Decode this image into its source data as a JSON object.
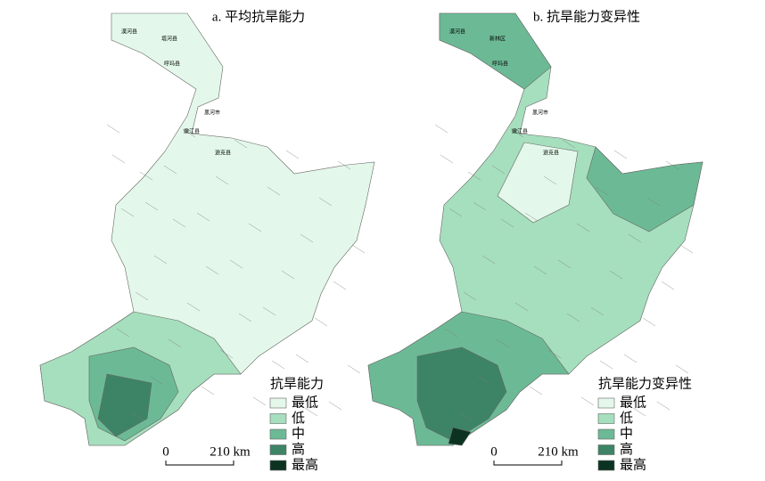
{
  "maps": [
    {
      "title": "a. 平均抗旱能力",
      "legend": {
        "title": "抗旱能力",
        "items": [
          {
            "label": "最低",
            "color": "#e3f8ea"
          },
          {
            "label": "低",
            "color": "#a6dfbd"
          },
          {
            "label": "中",
            "color": "#6cba95"
          },
          {
            "label": "高",
            "color": "#3d8466"
          },
          {
            "label": "最高",
            "color": "#0c3321"
          }
        ]
      },
      "scale": {
        "start": "0",
        "end": "210 km"
      },
      "places": [
        "漠河县",
        "塔河县",
        "呼玛县",
        "黑河市",
        "嫩江县",
        "逊克县"
      ]
    },
    {
      "title": "b. 抗旱能力变异性",
      "legend": {
        "title": "抗旱能力变异性",
        "items": [
          {
            "label": "最低",
            "color": "#e3f8ea"
          },
          {
            "label": "低",
            "color": "#a6dfbd"
          },
          {
            "label": "中",
            "color": "#6cba95"
          },
          {
            "label": "高",
            "color": "#3d8466"
          },
          {
            "label": "最高",
            "color": "#0c3321"
          }
        ]
      },
      "scale": {
        "start": "0",
        "end": "210 km"
      },
      "places": [
        "漠河县",
        "新林区",
        "呼玛县",
        "黑河市",
        "嫩江县",
        "逊克县"
      ]
    }
  ]
}
